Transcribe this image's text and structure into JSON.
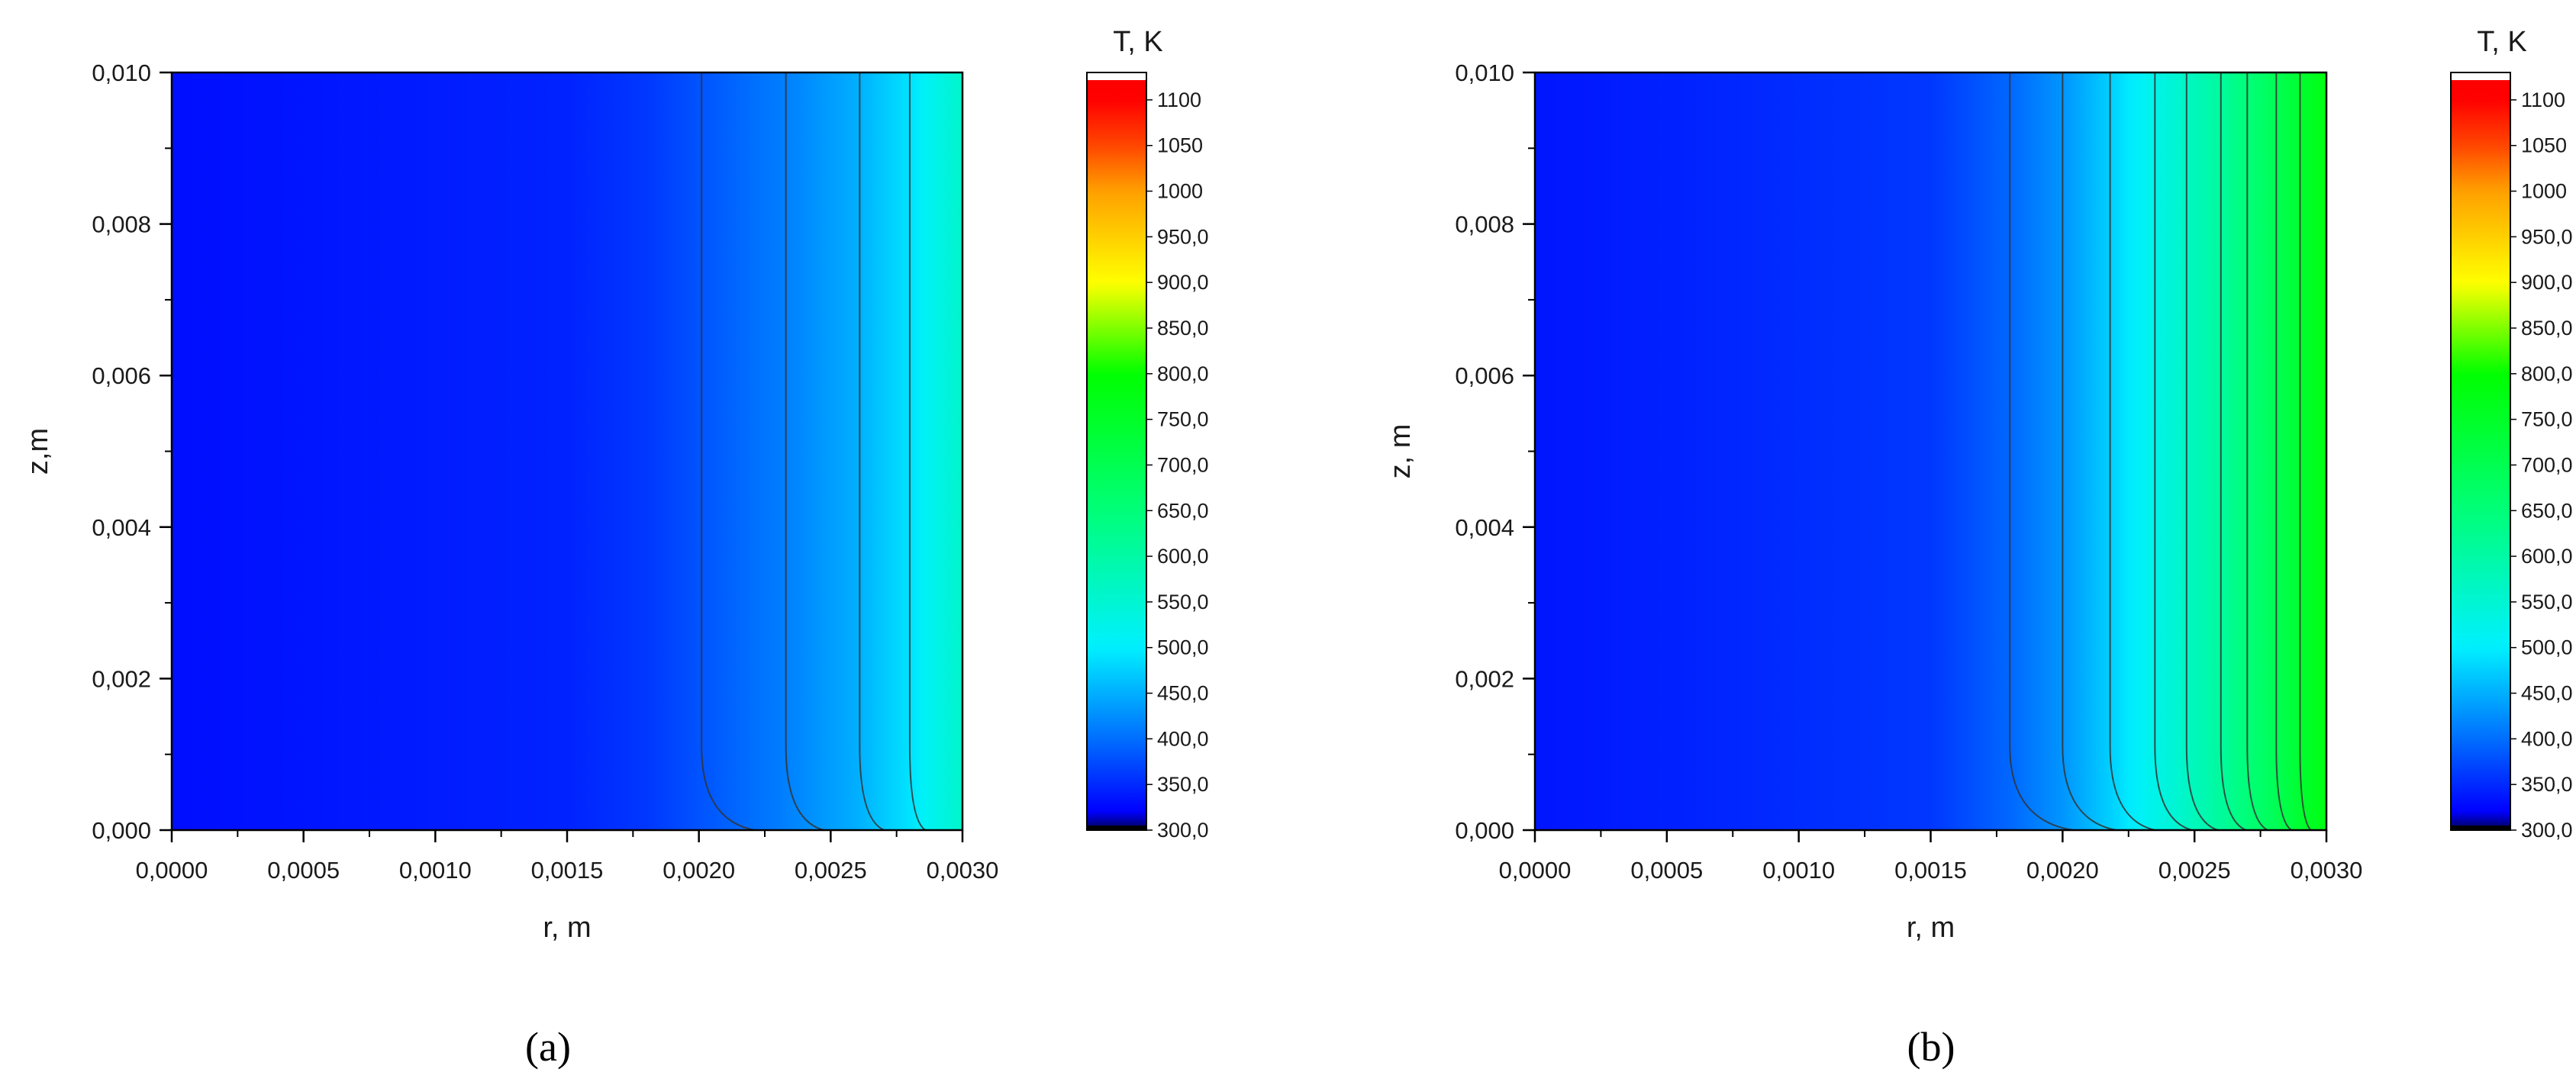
{
  "chart_data": [
    {
      "type": "heatmap",
      "panel_label": "a",
      "title": "",
      "xlabel": "r, m",
      "ylabel": "z,m",
      "xlim": [
        0,
        0.003
      ],
      "ylim": [
        0,
        0.01
      ],
      "x_ticks": [
        "0,0000",
        "0,0005",
        "0,0010",
        "0,0015",
        "0,0020",
        "0,0025",
        "0,0030"
      ],
      "y_ticks": [
        "0,000",
        "0,002",
        "0,004",
        "0,006",
        "0,008",
        "0,010"
      ],
      "x_tick_values": [
        0,
        0.0005,
        0.001,
        0.0015,
        0.002,
        0.0025,
        0.003
      ],
      "y_tick_values": [
        0,
        0.002,
        0.004,
        0.006,
        0.008,
        0.01
      ],
      "temperature_profile_r": [
        0,
        0.0015,
        0.0018,
        0.002,
        0.0023,
        0.0026,
        0.0028,
        0.003
      ],
      "temperature_profile_T": [
        330,
        345,
        360,
        380,
        410,
        450,
        490,
        560
      ],
      "contour_r_at_top": [
        0.00201,
        0.00233,
        0.00261,
        0.0028
      ],
      "colorbar": {
        "title": "T, K",
        "levels": [
          "300,0",
          "350,0",
          "400,0",
          "450,0",
          "500,0",
          "550,0",
          "600,0",
          "650,0",
          "700,0",
          "750,0",
          "800,0",
          "850,0",
          "900,0",
          "950,0",
          "1000",
          "1050",
          "1100"
        ],
        "level_values": [
          300,
          350,
          400,
          450,
          500,
          550,
          600,
          650,
          700,
          750,
          800,
          850,
          900,
          950,
          1000,
          1050,
          1100
        ],
        "vmin": 300,
        "vmax": 1130
      }
    },
    {
      "type": "heatmap",
      "panel_label": "b",
      "title": "",
      "xlabel": "r, m",
      "ylabel": "z, m",
      "xlim": [
        0,
        0.003
      ],
      "ylim": [
        0,
        0.01
      ],
      "x_ticks": [
        "0,0000",
        "0,0005",
        "0,0010",
        "0,0015",
        "0,0020",
        "0,0025",
        "0,0030"
      ],
      "y_ticks": [
        "0,000",
        "0,002",
        "0,004",
        "0,006",
        "0,008",
        "0,010"
      ],
      "x_tick_values": [
        0,
        0.0005,
        0.001,
        0.0015,
        0.002,
        0.0025,
        0.003
      ],
      "y_tick_values": [
        0,
        0.002,
        0.004,
        0.006,
        0.008,
        0.01
      ],
      "temperature_profile_r": [
        0,
        0.0015,
        0.0018,
        0.002,
        0.0022,
        0.0024,
        0.0026,
        0.0027,
        0.0028,
        0.0029,
        0.003
      ],
      "temperature_profile_T": [
        335,
        360,
        395,
        430,
        480,
        540,
        610,
        650,
        690,
        740,
        780
      ],
      "contour_r_at_top": [
        0.0018,
        0.002,
        0.00218,
        0.00235,
        0.00247,
        0.0026,
        0.0027,
        0.00281,
        0.0029
      ],
      "colorbar": {
        "title": "T, K",
        "levels": [
          "300,0",
          "350,0",
          "400,0",
          "450,0",
          "500,0",
          "550,0",
          "600,0",
          "650,0",
          "700,0",
          "750,0",
          "800,0",
          "850,0",
          "900,0",
          "950,0",
          "1000",
          "1050",
          "1100"
        ],
        "level_values": [
          300,
          350,
          400,
          450,
          500,
          550,
          600,
          650,
          700,
          750,
          800,
          850,
          900,
          950,
          1000,
          1050,
          1100
        ],
        "vmin": 300,
        "vmax": 1130
      }
    }
  ],
  "captions": [
    "(a)",
    "(b)"
  ],
  "colormap": [
    "#000000",
    "#0000ff",
    "#0080ff",
    "#00e5ff",
    "#00ff80",
    "#00ff00",
    "#ffff00",
    "#ffa000",
    "#ff3000",
    "#ff0000",
    "#ffffff"
  ]
}
